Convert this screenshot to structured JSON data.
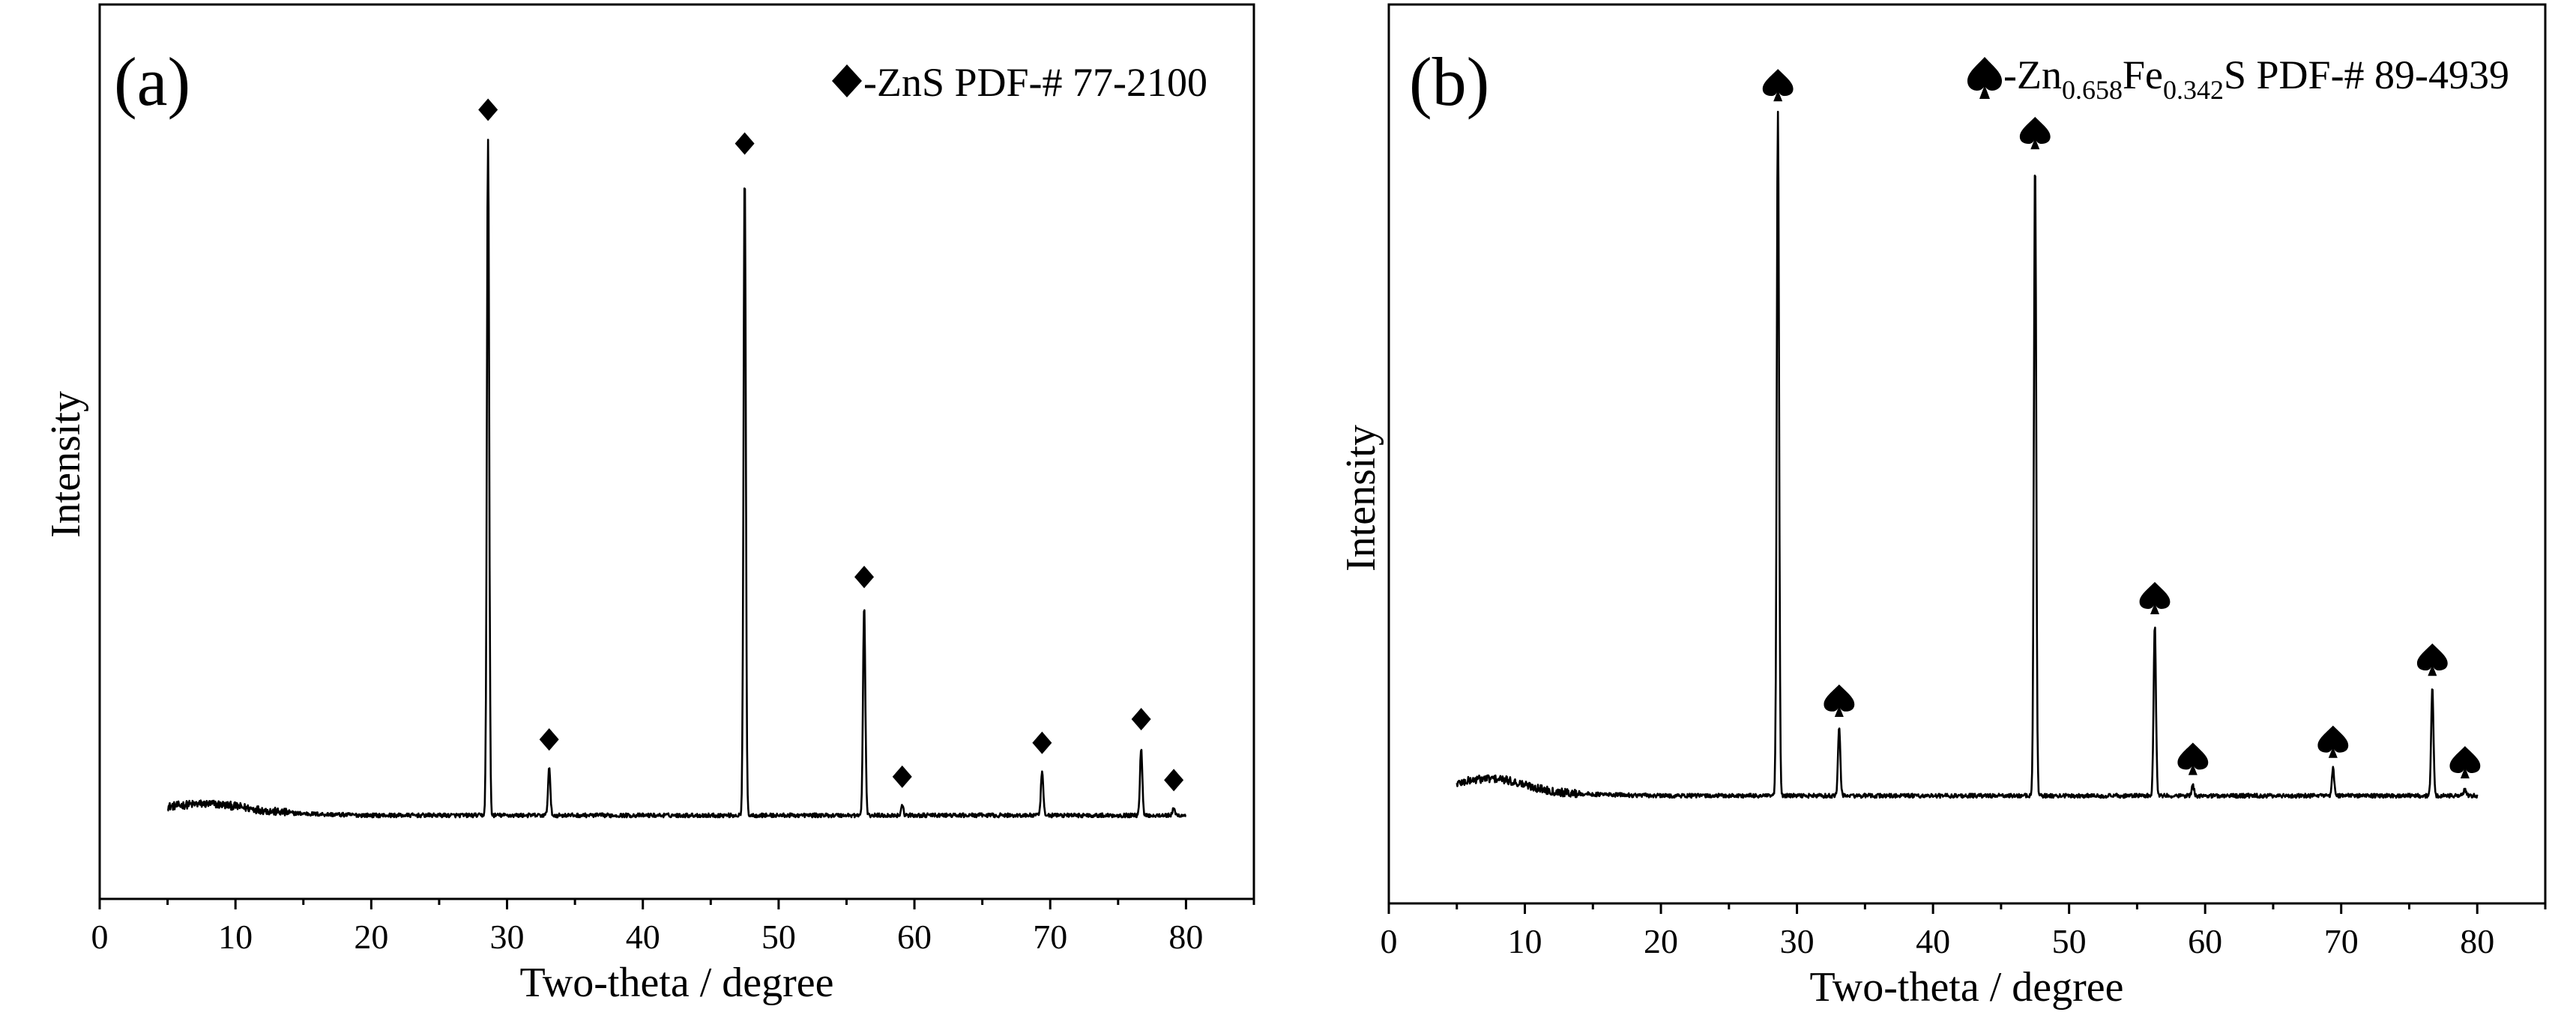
{
  "chart_data": [
    {
      "type": "line",
      "panel_label": "(a)",
      "legend": {
        "marker": "diamond",
        "text": "-ZnS PDF-# 77-2100"
      },
      "xlabel": "Two-theta / degree",
      "ylabel": "Intensity",
      "xlim": [
        0,
        85
      ],
      "xticks": [
        "0",
        "10",
        "20",
        "30",
        "40",
        "50",
        "60",
        "70",
        "80"
      ],
      "x_range": [
        5,
        80
      ],
      "baseline": 0.015,
      "hump": {
        "center": 8,
        "height": 0.012,
        "width": 4
      },
      "peaks": [
        {
          "x": 28.6,
          "y": 1.0,
          "marked": true
        },
        {
          "x": 33.1,
          "y": 0.07,
          "marked": true
        },
        {
          "x": 47.5,
          "y": 0.95,
          "marked": true
        },
        {
          "x": 56.3,
          "y": 0.31,
          "marked": true
        },
        {
          "x": 59.1,
          "y": 0.015,
          "marked": true
        },
        {
          "x": 69.4,
          "y": 0.065,
          "marked": true
        },
        {
          "x": 76.7,
          "y": 0.1,
          "marked": true
        },
        {
          "x": 79.1,
          "y": 0.01,
          "marked": true
        }
      ]
    },
    {
      "type": "line",
      "panel_label": "(b)",
      "legend": {
        "marker": "spade",
        "text_parts": [
          "-Zn",
          "0.658",
          "Fe",
          "0.342",
          "S PDF-# 89-4939"
        ]
      },
      "xlabel": "Two-theta / degree",
      "ylabel": "Intensity",
      "xlim": [
        0,
        85
      ],
      "xticks": [
        "0",
        "10",
        "20",
        "30",
        "40",
        "50",
        "60",
        "70",
        "80"
      ],
      "x_range": [
        5,
        80
      ],
      "baseline": 0.015,
      "hump": {
        "center": 7.5,
        "height": 0.02,
        "width": 3.5
      },
      "peaks": [
        {
          "x": 28.6,
          "y": 1.0,
          "marked": true
        },
        {
          "x": 33.1,
          "y": 0.1,
          "marked": true
        },
        {
          "x": 47.5,
          "y": 0.93,
          "marked": true
        },
        {
          "x": 56.3,
          "y": 0.25,
          "marked": true
        },
        {
          "x": 59.1,
          "y": 0.015,
          "marked": true
        },
        {
          "x": 69.4,
          "y": 0.04,
          "marked": true
        },
        {
          "x": 76.7,
          "y": 0.16,
          "marked": true
        },
        {
          "x": 79.1,
          "y": 0.01,
          "marked": true
        }
      ]
    }
  ]
}
